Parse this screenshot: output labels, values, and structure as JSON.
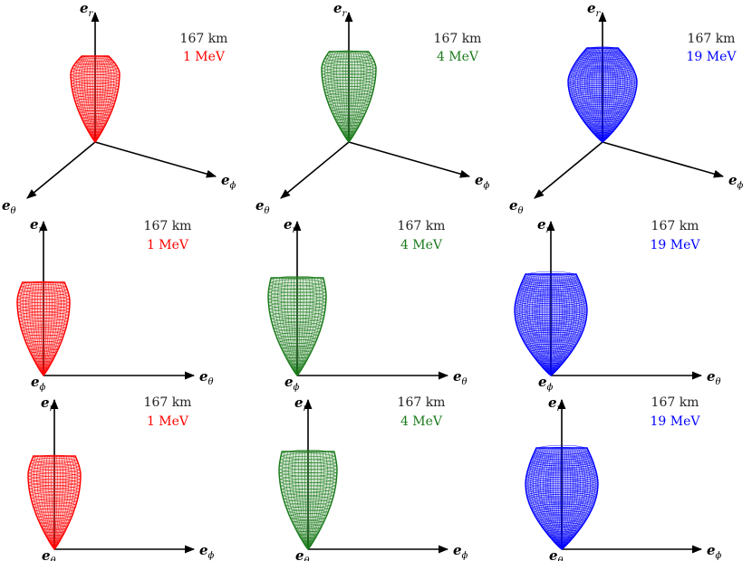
{
  "colors": {
    "1MeV": "#ff0000",
    "4MeV": "#1a7a1a",
    "19MeV": "#0000ff"
  },
  "axes": {
    "er": "e",
    "er_sub": "r",
    "etheta": "e",
    "etheta_sub": "θ",
    "ephi": "e",
    "ephi_sub": "ϕ"
  },
  "panels": [
    {
      "row": 0,
      "col": 0,
      "distance": "167 km",
      "energy": "1 MeV",
      "color_key": "1MeV"
    },
    {
      "row": 0,
      "col": 1,
      "distance": "167 km",
      "energy": "4 MeV",
      "color_key": "4MeV"
    },
    {
      "row": 0,
      "col": 2,
      "distance": "167 km",
      "energy": "19 MeV",
      "color_key": "19MeV"
    },
    {
      "row": 1,
      "col": 0,
      "distance": "167 km",
      "energy": "1 MeV",
      "color_key": "1MeV"
    },
    {
      "row": 1,
      "col": 1,
      "distance": "167 km",
      "energy": "4 MeV",
      "color_key": "4MeV"
    },
    {
      "row": 1,
      "col": 2,
      "distance": "167 km",
      "energy": "19 MeV",
      "color_key": "19MeV"
    },
    {
      "row": 2,
      "col": 0,
      "distance": "167 km",
      "energy": "1 MeV",
      "color_key": "1MeV"
    },
    {
      "row": 2,
      "col": 1,
      "distance": "167 km",
      "energy": "4 MeV",
      "color_key": "4MeV"
    },
    {
      "row": 2,
      "col": 2,
      "distance": "167 km",
      "energy": "19 MeV",
      "color_key": "19MeV"
    }
  ],
  "views": [
    {
      "row": 0,
      "type": "3d"
    },
    {
      "row": 1,
      "type": "side",
      "horizontal": "etheta",
      "origin": "ephi"
    },
    {
      "row": 2,
      "type": "side",
      "horizontal": "ephi",
      "origin": "etheta"
    }
  ]
}
